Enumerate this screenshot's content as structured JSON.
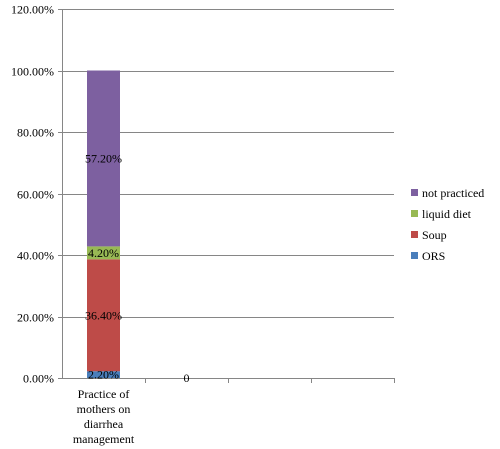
{
  "chart_data": {
    "type": "bar",
    "stacked": true,
    "categories": [
      [
        "Practice of",
        "mothers on",
        "diarrhea",
        "management"
      ],
      []
    ],
    "series": [
      {
        "name": "ORS",
        "values": [
          0.022,
          0
        ],
        "color": "#4a7ebb",
        "labels": [
          "2.20%",
          "0"
        ]
      },
      {
        "name": "Soup",
        "values": [
          0.364,
          0
        ],
        "color": "#be4b48",
        "labels": [
          "36.40%",
          ""
        ]
      },
      {
        "name": "liquid diet",
        "values": [
          0.042,
          0
        ],
        "color": "#98b954",
        "labels": [
          "4.20%",
          ""
        ]
      },
      {
        "name": "not  practiced",
        "values": [
          0.572,
          0
        ],
        "color": "#7d60a0",
        "labels": [
          "57.20%",
          ""
        ]
      }
    ],
    "yticks": [
      "0.00%",
      "20.00%",
      "40.00%",
      "60.00%",
      "80.00%",
      "100.00%",
      "120.00%"
    ],
    "ylim": [
      0,
      1.2
    ],
    "grid": true,
    "legend_position": "right",
    "legend_order": [
      "not  practiced",
      "liquid diet",
      "Soup",
      "ORS"
    ]
  }
}
